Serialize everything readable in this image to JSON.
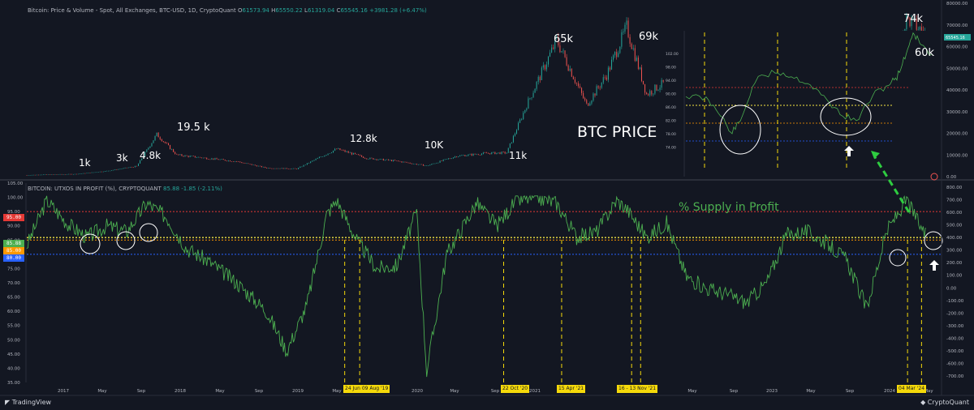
{
  "top_header": {
    "title": "Bitcoin: Price & Volume - Spot, All Exchanges, BTC-USD, 1D, CryptoQuant",
    "o_label": "O",
    "o": "61573.94",
    "h_label": "H",
    "h": "65550.22",
    "l_label": "L",
    "l": "61319.04",
    "c_label": "C",
    "c": "65545.16",
    "change": "+3981.28 (+6.47%)"
  },
  "bottom_header": {
    "title": "BITCOIN: UTXOS IN PROFIT (%), CRYPTOQUANT",
    "value": "85.88",
    "change": "-1.85 (-2.11%)"
  },
  "annotations": {
    "price_labels": [
      "1k",
      "3k",
      "4.8k",
      "19.5 k",
      "12.8k",
      "10K",
      "11k",
      "65k",
      "69k",
      "74k",
      "60k"
    ],
    "btc_price": "BTC PRICE",
    "supply_in_profit": "% Supply in Profit"
  },
  "level_tags": {
    "red": "95.00",
    "green": "85.88",
    "orange": "85.00",
    "blue": "80.00"
  },
  "date_tags": [
    "24 Jun 09 Aug '19",
    "22 Oct '20",
    "15 Apr '21",
    "16 - 13 Nov '21",
    "04 Mar '24"
  ],
  "x_axis_labels": [
    "2017",
    "May",
    "Sep",
    "2018",
    "May",
    "Sep",
    "2019",
    "May",
    "2020",
    "May",
    "Sep",
    "2021",
    "May",
    "2022",
    "May",
    "Sep",
    "2023",
    "May",
    "Sep",
    "2024",
    "May"
  ],
  "top_axis": [
    "80000.00",
    "70000.00",
    "60000.00",
    "50000.00",
    "40000.00",
    "30000.00",
    "20000.00",
    "10000.00",
    "0.00"
  ],
  "bottom_left_axis": [
    "105.00",
    "100.00",
    "95.00",
    "90.00",
    "85.00",
    "80.00",
    "75.00",
    "70.00",
    "65.00",
    "60.00",
    "55.00",
    "50.00",
    "45.00",
    "40.00",
    "35.00"
  ],
  "bottom_right_axis": [
    "800.00",
    "700.00",
    "600.00",
    "500.00",
    "400.00",
    "300.00",
    "200.00",
    "100.00",
    "0.00",
    "-100.00",
    "-200.00",
    "-300.00",
    "-400.00",
    "-500.00",
    "-600.00",
    "-700.00"
  ],
  "inset": {
    "left_axis": [
      "102.00",
      "98.00",
      "94.00",
      "90.00",
      "86.00",
      "82.00",
      "78.00",
      "74.00"
    ],
    "right_tag": "65545.16"
  },
  "branding": {
    "left": "TradingView",
    "right": "CryptoQuant"
  },
  "colors": {
    "background": "#131722",
    "price_up": "#26a69a",
    "price_down": "#ef5350",
    "supply_line": "#4caf50",
    "level_red": "#e53935",
    "level_yellow": "#f5e642",
    "level_orange": "#ff9800",
    "level_blue": "#2962ff",
    "event_line": "#f5d90a",
    "arrow_green": "#2ecc40",
    "annotation": "#ffffff"
  },
  "chart_data": [
    {
      "type": "line",
      "title": "Bitcoin: Price & Volume - Spot, All Exchanges, BTC-USD, 1D, CryptoQuant",
      "x": [
        "2016-11",
        "2017-01",
        "2017-04",
        "2017-07",
        "2017-10",
        "2017-12",
        "2018-02",
        "2018-05",
        "2018-08",
        "2018-11",
        "2019-02",
        "2019-06",
        "2019-09",
        "2019-12",
        "2020-03",
        "2020-06",
        "2020-09",
        "2020-11",
        "2021-01",
        "2021-04",
        "2021-07",
        "2021-09",
        "2021-11",
        "2022-01",
        "2022-03",
        "2022-06",
        "2022-09",
        "2022-11",
        "2023-01",
        "2023-04",
        "2023-07",
        "2023-10",
        "2024-01",
        "2024-03",
        "2024-05"
      ],
      "y": [
        700,
        1000,
        1200,
        2600,
        4800,
        19500,
        10000,
        8500,
        7000,
        4000,
        3600,
        12800,
        8500,
        7200,
        5000,
        9500,
        10800,
        11000,
        33000,
        63000,
        33000,
        47000,
        69000,
        38000,
        44000,
        20000,
        19500,
        16500,
        21000,
        29000,
        30000,
        30000,
        42000,
        73000,
        65545
      ],
      "ylim": [
        0,
        80000
      ]
    },
    {
      "type": "line",
      "title": "BITCOIN: UTXOS IN PROFIT (%), CRYPTOQUANT",
      "x": [
        "2016-11",
        "2017-01",
        "2017-03",
        "2017-05",
        "2017-07",
        "2017-09",
        "2017-11",
        "2018-01",
        "2018-03",
        "2018-05",
        "2018-08",
        "2018-11",
        "2019-01",
        "2019-03",
        "2019-05",
        "2019-06",
        "2019-08",
        "2019-10",
        "2019-12",
        "2020-02",
        "2020-03",
        "2020-05",
        "2020-08",
        "2020-10",
        "2020-12",
        "2021-02",
        "2021-04",
        "2021-06",
        "2021-08",
        "2021-10",
        "2021-11",
        "2022-01",
        "2022-03",
        "2022-05",
        "2022-07",
        "2022-09",
        "2022-11",
        "2023-01",
        "2023-03",
        "2023-05",
        "2023-07",
        "2023-09",
        "2023-11",
        "2024-01",
        "2024-03",
        "2024-05"
      ],
      "y": [
        83,
        99,
        91,
        86,
        90,
        88,
        98,
        93,
        82,
        78,
        70,
        60,
        46,
        62,
        94,
        99,
        85,
        75,
        76,
        95,
        39,
        80,
        98,
        90,
        99,
        100,
        98,
        86,
        88,
        99,
        96,
        86,
        91,
        72,
        68,
        66,
        63,
        70,
        87,
        88,
        84,
        78,
        61,
        88,
        99,
        85.88
      ],
      "ylim": [
        35,
        105
      ],
      "levels": [
        95,
        85.88,
        85,
        80
      ]
    }
  ]
}
